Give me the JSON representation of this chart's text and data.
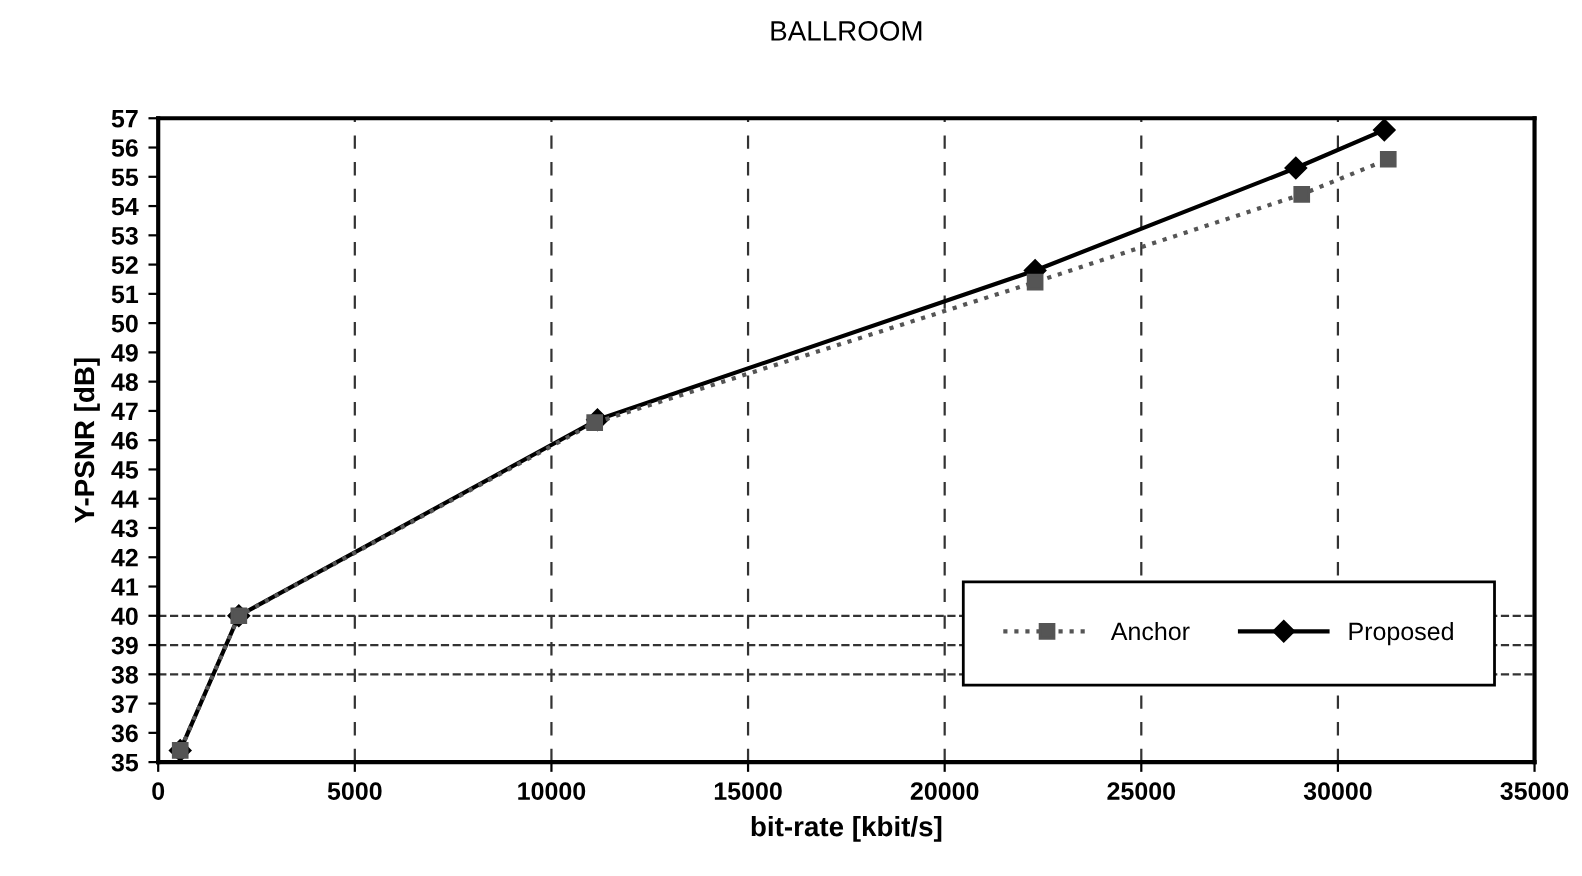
{
  "chart_data": {
    "type": "line",
    "title": "BALLROOM",
    "xlabel": "bit-rate [kbit/s]",
    "ylabel": "Y-PSNR [dB]",
    "series": [
      {
        "name": "Anchor",
        "color": "#555555",
        "marker": "square",
        "line_style": "dotted",
        "x": [
          560,
          2050,
          11100,
          22300,
          29080,
          31280
        ],
        "values": [
          35.4,
          40.0,
          46.6,
          51.4,
          54.4,
          55.6
        ]
      },
      {
        "name": "Proposed",
        "color": "#000000",
        "marker": "diamond",
        "line_style": "solid",
        "x": [
          560,
          2050,
          11170,
          22300,
          28930,
          31180
        ],
        "values": [
          35.4,
          40.0,
          46.7,
          51.8,
          55.3,
          56.6
        ]
      }
    ],
    "xlim": [
      0,
      35000
    ],
    "xticks": [
      0,
      5000,
      10000,
      15000,
      20000,
      25000,
      30000,
      35000
    ],
    "ylim": [
      35,
      57
    ],
    "yticks": [
      35,
      36,
      37,
      38,
      39,
      40,
      41,
      42,
      43,
      44,
      45,
      46,
      47,
      48,
      49,
      50,
      51,
      52,
      53,
      54,
      55,
      56,
      57
    ],
    "ref_lines": [
      {
        "axis": "y",
        "value": 38,
        "line_style": "dashed"
      },
      {
        "axis": "y",
        "value": 39,
        "line_style": "dashed"
      },
      {
        "axis": "y",
        "value": 40,
        "line_style": "dashed"
      }
    ],
    "grid": "x",
    "legend": "bottom right"
  }
}
